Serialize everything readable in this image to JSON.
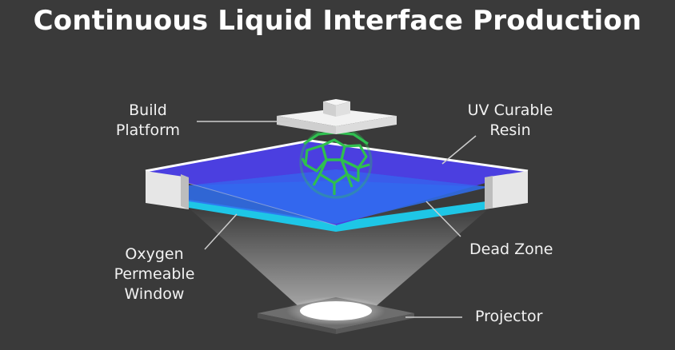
{
  "title": "Continuous Liquid Interface Production",
  "labels": {
    "build_platform": [
      "Build",
      "Platform"
    ],
    "uv_resin": [
      "UV Curable",
      "Resin"
    ],
    "oxygen_window": [
      "Oxygen",
      "Permeable",
      "Window"
    ],
    "dead_zone": [
      "Dead Zone"
    ],
    "projector": [
      "Projector"
    ]
  },
  "colors": {
    "background": "#3a3a3a",
    "resin": "#4b3fe0",
    "dead_zone": "#2f6ff0",
    "window": "#1ec6e6",
    "part": "#2fbf4f",
    "platform": "#eeeeee"
  }
}
